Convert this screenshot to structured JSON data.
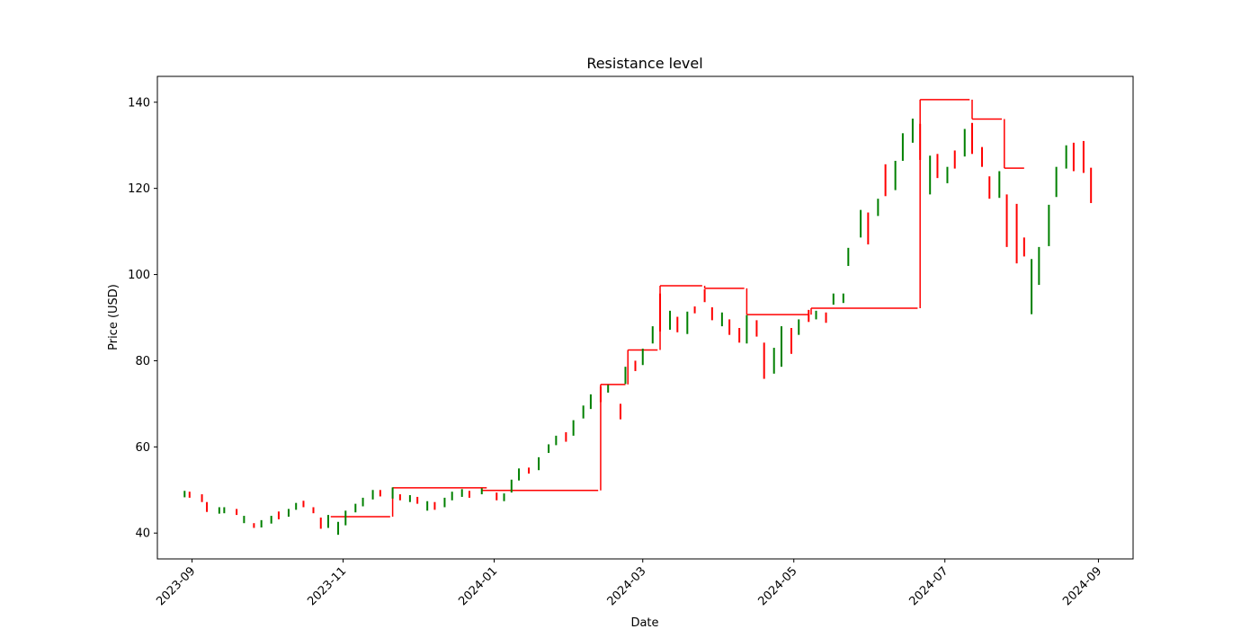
{
  "colors": {
    "up": "#008000",
    "down": "#ff0000",
    "resistance": "#ff0000",
    "axis": "#000000"
  },
  "chart_data": {
    "type": "candlestick",
    "title": "Resistance level",
    "xlabel": "Date",
    "ylabel": "Price (USD)",
    "grid": false,
    "legend": "none",
    "xlim": [
      "2023-08-18",
      "2024-09-15"
    ],
    "ylim": [
      34,
      146
    ],
    "x_ticks": [
      "2023-09",
      "2023-11",
      "2024-01",
      "2024-03",
      "2024-05",
      "2024-07",
      "2024-09"
    ],
    "x_tick_dates": [
      "2023-09-01",
      "2023-11-01",
      "2024-01-01",
      "2024-03-01",
      "2024-05-01",
      "2024-07-01",
      "2024-09-01"
    ],
    "y_ticks": [
      40,
      60,
      80,
      100,
      120,
      140
    ],
    "candles": [
      {
        "x": "2023-08-29",
        "low": 48.3,
        "high": 49.8,
        "dir": "up"
      },
      {
        "x": "2023-08-31",
        "low": 48.2,
        "high": 49.6,
        "dir": "down"
      },
      {
        "x": "2023-09-05",
        "low": 47.2,
        "high": 49.0,
        "dir": "down"
      },
      {
        "x": "2023-09-07",
        "low": 44.9,
        "high": 47.2,
        "dir": "down"
      },
      {
        "x": "2023-09-12",
        "low": 44.5,
        "high": 46.0,
        "dir": "up"
      },
      {
        "x": "2023-09-14",
        "low": 44.6,
        "high": 46.0,
        "dir": "up"
      },
      {
        "x": "2023-09-19",
        "low": 44.2,
        "high": 45.6,
        "dir": "down"
      },
      {
        "x": "2023-09-22",
        "low": 42.3,
        "high": 44.0,
        "dir": "up"
      },
      {
        "x": "2023-09-26",
        "low": 41.2,
        "high": 42.3,
        "dir": "down"
      },
      {
        "x": "2023-09-29",
        "low": 41.3,
        "high": 43.0,
        "dir": "up"
      },
      {
        "x": "2023-10-03",
        "low": 42.2,
        "high": 44.0,
        "dir": "up"
      },
      {
        "x": "2023-10-06",
        "low": 43.2,
        "high": 45.0,
        "dir": "down"
      },
      {
        "x": "2023-10-10",
        "low": 43.8,
        "high": 45.6,
        "dir": "up"
      },
      {
        "x": "2023-10-13",
        "low": 45.4,
        "high": 47.0,
        "dir": "up"
      },
      {
        "x": "2023-10-16",
        "low": 46.0,
        "high": 47.5,
        "dir": "down"
      },
      {
        "x": "2023-10-20",
        "low": 44.6,
        "high": 46.0,
        "dir": "down"
      },
      {
        "x": "2023-10-23",
        "low": 41.0,
        "high": 43.6,
        "dir": "down"
      },
      {
        "x": "2023-10-26",
        "low": 41.2,
        "high": 44.2,
        "dir": "up"
      },
      {
        "x": "2023-10-30",
        "low": 39.6,
        "high": 42.6,
        "dir": "up"
      },
      {
        "x": "2023-11-02",
        "low": 41.8,
        "high": 45.2,
        "dir": "up"
      },
      {
        "x": "2023-11-06",
        "low": 44.8,
        "high": 46.8,
        "dir": "up"
      },
      {
        "x": "2023-11-09",
        "low": 46.2,
        "high": 48.2,
        "dir": "up"
      },
      {
        "x": "2023-11-13",
        "low": 47.8,
        "high": 50.0,
        "dir": "up"
      },
      {
        "x": "2023-11-16",
        "low": 48.5,
        "high": 50.0,
        "dir": "down"
      },
      {
        "x": "2023-11-21",
        "low": 48.0,
        "high": 50.6,
        "dir": "up"
      },
      {
        "x": "2023-11-24",
        "low": 47.6,
        "high": 49.0,
        "dir": "down"
      },
      {
        "x": "2023-11-28",
        "low": 47.2,
        "high": 48.8,
        "dir": "up"
      },
      {
        "x": "2023-12-01",
        "low": 46.8,
        "high": 48.4,
        "dir": "down"
      },
      {
        "x": "2023-12-05",
        "low": 45.2,
        "high": 47.4,
        "dir": "up"
      },
      {
        "x": "2023-12-08",
        "low": 45.4,
        "high": 47.2,
        "dir": "down"
      },
      {
        "x": "2023-12-12",
        "low": 46.0,
        "high": 48.2,
        "dir": "up"
      },
      {
        "x": "2023-12-15",
        "low": 47.6,
        "high": 49.6,
        "dir": "up"
      },
      {
        "x": "2023-12-19",
        "low": 48.4,
        "high": 50.2,
        "dir": "up"
      },
      {
        "x": "2023-12-22",
        "low": 48.2,
        "high": 49.8,
        "dir": "down"
      },
      {
        "x": "2023-12-27",
        "low": 49.0,
        "high": 50.4,
        "dir": "up"
      },
      {
        "x": "2024-01-02",
        "low": 47.6,
        "high": 49.4,
        "dir": "down"
      },
      {
        "x": "2024-01-05",
        "low": 47.4,
        "high": 49.2,
        "dir": "up"
      },
      {
        "x": "2024-01-08",
        "low": 49.4,
        "high": 52.4,
        "dir": "up"
      },
      {
        "x": "2024-01-11",
        "low": 52.2,
        "high": 55.0,
        "dir": "up"
      },
      {
        "x": "2024-01-15",
        "low": 53.8,
        "high": 55.2,
        "dir": "down"
      },
      {
        "x": "2024-01-19",
        "low": 54.6,
        "high": 57.6,
        "dir": "up"
      },
      {
        "x": "2024-01-23",
        "low": 58.6,
        "high": 60.6,
        "dir": "up"
      },
      {
        "x": "2024-01-26",
        "low": 60.4,
        "high": 62.6,
        "dir": "up"
      },
      {
        "x": "2024-01-30",
        "low": 61.2,
        "high": 63.4,
        "dir": "down"
      },
      {
        "x": "2024-02-02",
        "low": 62.6,
        "high": 66.2,
        "dir": "up"
      },
      {
        "x": "2024-02-06",
        "low": 66.6,
        "high": 69.6,
        "dir": "up"
      },
      {
        "x": "2024-02-09",
        "low": 68.8,
        "high": 72.2,
        "dir": "up"
      },
      {
        "x": "2024-02-13",
        "low": 70.4,
        "high": 74.0,
        "dir": "down"
      },
      {
        "x": "2024-02-16",
        "low": 72.6,
        "high": 74.4,
        "dir": "up"
      },
      {
        "x": "2024-02-21",
        "low": 66.4,
        "high": 70.0,
        "dir": "down"
      },
      {
        "x": "2024-02-23",
        "low": 74.6,
        "high": 78.6,
        "dir": "up"
      },
      {
        "x": "2024-02-27",
        "low": 77.6,
        "high": 80.0,
        "dir": "down"
      },
      {
        "x": "2024-03-01",
        "low": 79.0,
        "high": 82.8,
        "dir": "up"
      },
      {
        "x": "2024-03-05",
        "low": 84.0,
        "high": 88.0,
        "dir": "up"
      },
      {
        "x": "2024-03-08",
        "low": 86.8,
        "high": 95.6,
        "dir": "down"
      },
      {
        "x": "2024-03-12",
        "low": 87.2,
        "high": 91.6,
        "dir": "up"
      },
      {
        "x": "2024-03-15",
        "low": 86.6,
        "high": 90.2,
        "dir": "down"
      },
      {
        "x": "2024-03-19",
        "low": 86.2,
        "high": 91.4,
        "dir": "up"
      },
      {
        "x": "2024-03-22",
        "low": 91.0,
        "high": 92.6,
        "dir": "down"
      },
      {
        "x": "2024-03-26",
        "low": 93.6,
        "high": 96.6,
        "dir": "down"
      },
      {
        "x": "2024-03-29",
        "low": 89.4,
        "high": 92.4,
        "dir": "down"
      },
      {
        "x": "2024-04-02",
        "low": 88.0,
        "high": 91.2,
        "dir": "up"
      },
      {
        "x": "2024-04-05",
        "low": 86.0,
        "high": 89.6,
        "dir": "down"
      },
      {
        "x": "2024-04-09",
        "low": 84.2,
        "high": 87.6,
        "dir": "down"
      },
      {
        "x": "2024-04-12",
        "low": 84.0,
        "high": 90.6,
        "dir": "up"
      },
      {
        "x": "2024-04-16",
        "low": 85.6,
        "high": 89.4,
        "dir": "down"
      },
      {
        "x": "2024-04-19",
        "low": 75.8,
        "high": 84.2,
        "dir": "down"
      },
      {
        "x": "2024-04-23",
        "low": 77.0,
        "high": 83.0,
        "dir": "up"
      },
      {
        "x": "2024-04-26",
        "low": 78.6,
        "high": 88.0,
        "dir": "up"
      },
      {
        "x": "2024-04-30",
        "low": 81.6,
        "high": 87.6,
        "dir": "down"
      },
      {
        "x": "2024-05-03",
        "low": 86.0,
        "high": 89.6,
        "dir": "up"
      },
      {
        "x": "2024-05-07",
        "low": 89.0,
        "high": 91.8,
        "dir": "down"
      },
      {
        "x": "2024-05-10",
        "low": 89.6,
        "high": 91.6,
        "dir": "up"
      },
      {
        "x": "2024-05-14",
        "low": 88.8,
        "high": 91.2,
        "dir": "down"
      },
      {
        "x": "2024-05-17",
        "low": 93.0,
        "high": 95.6,
        "dir": "up"
      },
      {
        "x": "2024-05-21",
        "low": 93.4,
        "high": 95.6,
        "dir": "up"
      },
      {
        "x": "2024-05-23",
        "low": 102.0,
        "high": 106.2,
        "dir": "up"
      },
      {
        "x": "2024-05-28",
        "low": 108.6,
        "high": 115.0,
        "dir": "up"
      },
      {
        "x": "2024-05-31",
        "low": 107.0,
        "high": 114.4,
        "dir": "down"
      },
      {
        "x": "2024-06-04",
        "low": 113.6,
        "high": 117.6,
        "dir": "up"
      },
      {
        "x": "2024-06-07",
        "low": 118.2,
        "high": 125.6,
        "dir": "down"
      },
      {
        "x": "2024-06-11",
        "low": 119.6,
        "high": 126.4,
        "dir": "up"
      },
      {
        "x": "2024-06-14",
        "low": 126.4,
        "high": 132.8,
        "dir": "up"
      },
      {
        "x": "2024-06-18",
        "low": 130.6,
        "high": 136.2,
        "dir": "up"
      },
      {
        "x": "2024-06-21",
        "low": 126.6,
        "high": 135.0,
        "dir": "down"
      },
      {
        "x": "2024-06-25",
        "low": 118.6,
        "high": 127.6,
        "dir": "up"
      },
      {
        "x": "2024-06-28",
        "low": 122.4,
        "high": 128.0,
        "dir": "down"
      },
      {
        "x": "2024-07-02",
        "low": 121.2,
        "high": 125.0,
        "dir": "up"
      },
      {
        "x": "2024-07-05",
        "low": 124.6,
        "high": 128.8,
        "dir": "down"
      },
      {
        "x": "2024-07-09",
        "low": 127.4,
        "high": 133.8,
        "dir": "up"
      },
      {
        "x": "2024-07-12",
        "low": 128.0,
        "high": 135.2,
        "dir": "down"
      },
      {
        "x": "2024-07-16",
        "low": 125.0,
        "high": 129.6,
        "dir": "down"
      },
      {
        "x": "2024-07-19",
        "low": 117.6,
        "high": 122.8,
        "dir": "down"
      },
      {
        "x": "2024-07-23",
        "low": 117.8,
        "high": 124.0,
        "dir": "up"
      },
      {
        "x": "2024-07-26",
        "low": 106.4,
        "high": 118.6,
        "dir": "down"
      },
      {
        "x": "2024-07-30",
        "low": 102.6,
        "high": 116.4,
        "dir": "down"
      },
      {
        "x": "2024-08-02",
        "low": 104.2,
        "high": 108.6,
        "dir": "down"
      },
      {
        "x": "2024-08-05",
        "low": 90.8,
        "high": 103.6,
        "dir": "up"
      },
      {
        "x": "2024-08-08",
        "low": 97.6,
        "high": 106.4,
        "dir": "up"
      },
      {
        "x": "2024-08-12",
        "low": 106.6,
        "high": 116.2,
        "dir": "up"
      },
      {
        "x": "2024-08-15",
        "low": 118.0,
        "high": 125.0,
        "dir": "up"
      },
      {
        "x": "2024-08-19",
        "low": 124.6,
        "high": 130.0,
        "dir": "up"
      },
      {
        "x": "2024-08-22",
        "low": 124.0,
        "high": 130.6,
        "dir": "down"
      },
      {
        "x": "2024-08-26",
        "low": 123.6,
        "high": 131.0,
        "dir": "down"
      },
      {
        "x": "2024-08-29",
        "low": 116.6,
        "high": 124.8,
        "dir": "down"
      }
    ],
    "resistance_levels": [
      {
        "start": "2023-10-27",
        "end": "2023-11-20",
        "level": 43.8
      },
      {
        "start": "2023-11-21",
        "end": "2023-12-29",
        "level": 50.5
      },
      {
        "start": "2023-12-27",
        "end": "2024-02-12",
        "level": 49.9
      },
      {
        "start": "2024-02-13",
        "end": "2024-02-23",
        "level": 74.5
      },
      {
        "start": "2024-02-24",
        "end": "2024-03-07",
        "level": 82.5
      },
      {
        "start": "2024-03-08",
        "end": "2024-03-25",
        "level": 97.4
      },
      {
        "start": "2024-03-26",
        "end": "2024-04-11",
        "level": 96.8
      },
      {
        "start": "2024-04-12",
        "end": "2024-05-07",
        "level": 90.7
      },
      {
        "start": "2024-05-08",
        "end": "2024-06-20",
        "level": 92.2
      },
      {
        "start": "2024-06-21",
        "end": "2024-07-11",
        "level": 140.6
      },
      {
        "start": "2024-07-12",
        "end": "2024-07-24",
        "level": 136.1
      },
      {
        "start": "2024-07-25",
        "end": "2024-08-02",
        "level": 124.7
      }
    ]
  }
}
